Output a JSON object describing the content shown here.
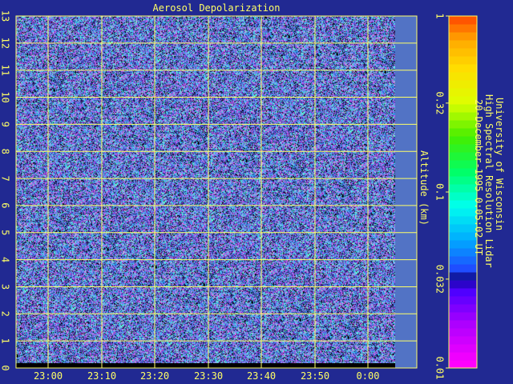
{
  "chart_data": {
    "type": "heatmap",
    "title": "Aerosol Depolarization",
    "ylabel": "Altitude (km)",
    "xlabel": "",
    "x_tick_labels": [
      "23:00",
      "23:10",
      "23:20",
      "23:30",
      "23:40",
      "23:50",
      "0:00"
    ],
    "y_tick_labels": [
      "0",
      "1",
      "2",
      "3",
      "4",
      "5",
      "6",
      "7",
      "8",
      "9",
      "10",
      "11",
      "12",
      "13"
    ],
    "ylim": [
      0,
      13
    ],
    "colorbar": {
      "scale": "log",
      "range": [
        0.01,
        1
      ],
      "tick_labels": [
        "1",
        "0.32",
        "0.1",
        "0.032",
        "0.01"
      ],
      "tick_values": [
        1,
        0.32,
        0.1,
        0.032,
        0.01
      ]
    },
    "grid": true
  },
  "caption": {
    "line1": "University of Wisconsin",
    "line2": "High Spectral Resolution Lidar",
    "line3": "20-December-1995  0:05:02 UT"
  },
  "colors": {
    "background": "#212992",
    "text": "#ffff66",
    "grid": "#ffff66",
    "no_data": "#5273c5"
  }
}
